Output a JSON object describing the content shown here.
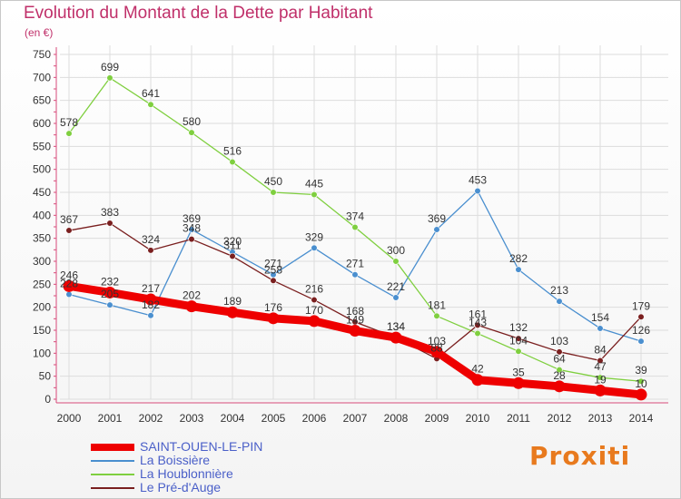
{
  "title": "Evolution du Montant de la Dette par Habitant",
  "subtitle": "(en €)",
  "logo": "Proxiti",
  "chart_data": {
    "type": "line",
    "title": "Evolution du Montant de la Dette par Habitant",
    "subtitle": "(en €)",
    "xlabel": "",
    "ylabel": "",
    "x": [
      "2000",
      "2001",
      "2002",
      "2003",
      "2004",
      "2005",
      "2006",
      "2007",
      "2008",
      "2009",
      "2010",
      "2011",
      "2012",
      "2013",
      "2014"
    ],
    "ylim": [
      0,
      750
    ],
    "yticks": [
      0,
      50,
      100,
      150,
      200,
      250,
      300,
      350,
      400,
      450,
      500,
      550,
      600,
      650,
      700,
      750
    ],
    "grid": true,
    "legend_position": "bottom-left",
    "series": [
      {
        "name": "SAINT-OUEN-LE-PIN",
        "color": "#ee0000",
        "values": [
          246,
          232,
          217,
          202,
          189,
          176,
          170,
          149,
          134,
          103,
          42,
          35,
          28,
          19,
          10
        ]
      },
      {
        "name": "La Boissière",
        "color": "#4a8fcf",
        "values": [
          228,
          205,
          182,
          369,
          320,
          271,
          329,
          271,
          221,
          369,
          453,
          282,
          213,
          154,
          126
        ]
      },
      {
        "name": "La Houblonnière",
        "color": "#7fcf3f",
        "values": [
          578,
          699,
          641,
          580,
          516,
          450,
          445,
          374,
          300,
          181,
          143,
          104,
          64,
          47,
          39
        ]
      },
      {
        "name": "Le Pré-d'Auge",
        "color": "#7a1f1f",
        "values": [
          367,
          383,
          324,
          348,
          311,
          258,
          216,
          168,
          134,
          88,
          161,
          132,
          103,
          84,
          179
        ]
      }
    ]
  }
}
